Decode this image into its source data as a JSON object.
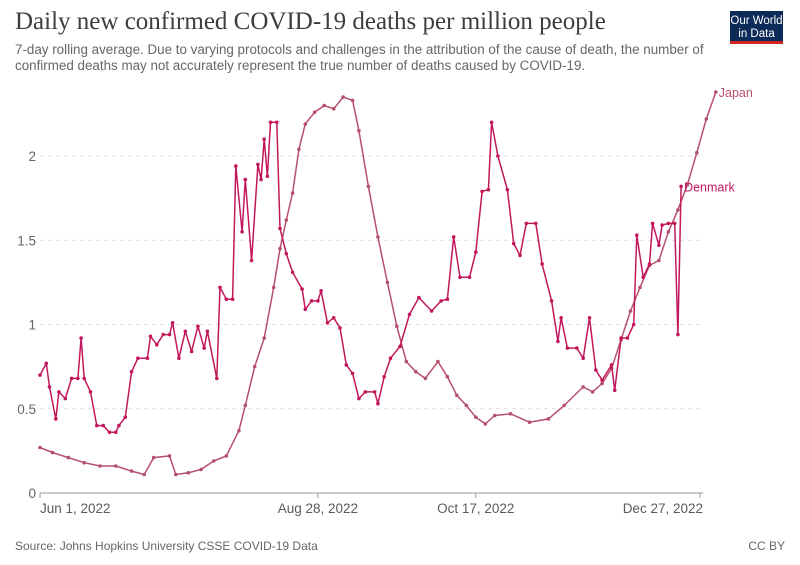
{
  "header": {
    "title": "Daily new confirmed COVID-19 deaths per million people",
    "subtitle": "7-day rolling average. Due to varying protocols and challenges in the attribution of the cause of death, the number of confirmed deaths may not accurately represent the true number of deaths caused by COVID-19.",
    "logo_line1": "Our World",
    "logo_line2": "in Data"
  },
  "footer": {
    "source": "Source: Johns Hopkins University CSSE COVID-19 Data",
    "license": "CC BY"
  },
  "colors": {
    "japan": "#b5506a",
    "denmark": "#c2185b",
    "grid": "#dddddd",
    "axis": "#999999"
  },
  "chart_data": {
    "type": "line",
    "title": "Daily new confirmed COVID-19 deaths per million people",
    "xlabel": "",
    "ylabel": "",
    "x_domain": [
      "2022-05-31",
      "2023-01-16"
    ],
    "ylim": [
      0,
      2.38
    ],
    "y_ticks": [
      0,
      0.5,
      1,
      1.5,
      2
    ],
    "y_tick_labels": [
      "0",
      "0.5",
      "1",
      "1.5",
      "2"
    ],
    "x_ticks": [
      "2022-06-01",
      "2022-08-28",
      "2022-10-17",
      "2022-12-27"
    ],
    "x_tick_labels": [
      "Jun 1, 2022",
      "Aug 28, 2022",
      "Oct 17, 2022",
      "Dec 27, 2022"
    ],
    "grid": "horizontal dashed",
    "legend": "inline labels at line ends",
    "series": [
      {
        "name": "Japan",
        "color": "#b5506a",
        "points": [
          [
            "2022-06-01",
            0.27
          ],
          [
            "2022-06-05",
            0.24
          ],
          [
            "2022-06-10",
            0.21
          ],
          [
            "2022-06-15",
            0.18
          ],
          [
            "2022-06-20",
            0.16
          ],
          [
            "2022-06-25",
            0.16
          ],
          [
            "2022-06-30",
            0.13
          ],
          [
            "2022-07-04",
            0.11
          ],
          [
            "2022-07-07",
            0.21
          ],
          [
            "2022-07-12",
            0.22
          ],
          [
            "2022-07-14",
            0.11
          ],
          [
            "2022-07-18",
            0.12
          ],
          [
            "2022-07-22",
            0.14
          ],
          [
            "2022-07-26",
            0.19
          ],
          [
            "2022-07-30",
            0.22
          ],
          [
            "2022-08-03",
            0.37
          ],
          [
            "2022-08-05",
            0.52
          ],
          [
            "2022-08-08",
            0.75
          ],
          [
            "2022-08-11",
            0.92
          ],
          [
            "2022-08-14",
            1.22
          ],
          [
            "2022-08-16",
            1.45
          ],
          [
            "2022-08-18",
            1.62
          ],
          [
            "2022-08-20",
            1.78
          ],
          [
            "2022-08-22",
            2.04
          ],
          [
            "2022-08-24",
            2.19
          ],
          [
            "2022-08-27",
            2.26
          ],
          [
            "2022-08-30",
            2.3
          ],
          [
            "2022-09-02",
            2.28
          ],
          [
            "2022-09-05",
            2.35
          ],
          [
            "2022-09-08",
            2.33
          ],
          [
            "2022-09-10",
            2.15
          ],
          [
            "2022-09-13",
            1.82
          ],
          [
            "2022-09-16",
            1.52
          ],
          [
            "2022-09-19",
            1.25
          ],
          [
            "2022-09-22",
            0.99
          ],
          [
            "2022-09-25",
            0.78
          ],
          [
            "2022-09-28",
            0.72
          ],
          [
            "2022-10-01",
            0.68
          ],
          [
            "2022-10-05",
            0.78
          ],
          [
            "2022-10-08",
            0.69
          ],
          [
            "2022-10-11",
            0.58
          ],
          [
            "2022-10-14",
            0.52
          ],
          [
            "2022-10-17",
            0.45
          ],
          [
            "2022-10-20",
            0.41
          ],
          [
            "2022-10-23",
            0.46
          ],
          [
            "2022-10-28",
            0.47
          ],
          [
            "2022-11-03",
            0.42
          ],
          [
            "2022-11-09",
            0.44
          ],
          [
            "2022-11-14",
            0.52
          ],
          [
            "2022-11-20",
            0.63
          ],
          [
            "2022-11-23",
            0.6
          ],
          [
            "2022-11-26",
            0.65
          ],
          [
            "2022-11-29",
            0.74
          ],
          [
            "2022-12-02",
            0.91
          ],
          [
            "2022-12-05",
            1.08
          ],
          [
            "2022-12-08",
            1.22
          ],
          [
            "2022-12-11",
            1.35
          ],
          [
            "2022-12-14",
            1.38
          ],
          [
            "2022-12-17",
            1.55
          ],
          [
            "2022-12-20",
            1.68
          ],
          [
            "2022-12-23",
            1.83
          ],
          [
            "2022-12-26",
            2.02
          ],
          [
            "2022-12-29",
            2.22
          ],
          [
            "2023-01-01",
            2.38
          ]
        ]
      },
      {
        "name": "Denmark",
        "color": "#c2185b",
        "points": [
          [
            "2022-06-01",
            0.7
          ],
          [
            "2022-06-03",
            0.77
          ],
          [
            "2022-06-04",
            0.63
          ],
          [
            "2022-06-06",
            0.44
          ],
          [
            "2022-06-07",
            0.6
          ],
          [
            "2022-06-09",
            0.56
          ],
          [
            "2022-06-11",
            0.68
          ],
          [
            "2022-06-13",
            0.68
          ],
          [
            "2022-06-14",
            0.92
          ],
          [
            "2022-06-15",
            0.68
          ],
          [
            "2022-06-17",
            0.6
          ],
          [
            "2022-06-19",
            0.4
          ],
          [
            "2022-06-21",
            0.4
          ],
          [
            "2022-06-23",
            0.36
          ],
          [
            "2022-06-25",
            0.36
          ],
          [
            "2022-06-26",
            0.4
          ],
          [
            "2022-06-28",
            0.45
          ],
          [
            "2022-06-30",
            0.72
          ],
          [
            "2022-07-02",
            0.8
          ],
          [
            "2022-07-05",
            0.8
          ],
          [
            "2022-07-06",
            0.93
          ],
          [
            "2022-07-08",
            0.88
          ],
          [
            "2022-07-10",
            0.94
          ],
          [
            "2022-07-12",
            0.94
          ],
          [
            "2022-07-13",
            1.01
          ],
          [
            "2022-07-15",
            0.8
          ],
          [
            "2022-07-17",
            0.96
          ],
          [
            "2022-07-19",
            0.84
          ],
          [
            "2022-07-21",
            0.99
          ],
          [
            "2022-07-23",
            0.86
          ],
          [
            "2022-07-24",
            0.96
          ],
          [
            "2022-07-27",
            0.68
          ],
          [
            "2022-07-28",
            1.22
          ],
          [
            "2022-07-30",
            1.15
          ],
          [
            "2022-08-01",
            1.15
          ],
          [
            "2022-08-02",
            1.94
          ],
          [
            "2022-08-04",
            1.55
          ],
          [
            "2022-08-05",
            1.86
          ],
          [
            "2022-08-07",
            1.38
          ],
          [
            "2022-08-09",
            1.95
          ],
          [
            "2022-08-10",
            1.86
          ],
          [
            "2022-08-11",
            2.1
          ],
          [
            "2022-08-12",
            1.88
          ],
          [
            "2022-08-13",
            2.2
          ],
          [
            "2022-08-15",
            2.2
          ],
          [
            "2022-08-16",
            1.57
          ],
          [
            "2022-08-18",
            1.42
          ],
          [
            "2022-08-20",
            1.31
          ],
          [
            "2022-08-23",
            1.21
          ],
          [
            "2022-08-24",
            1.09
          ],
          [
            "2022-08-26",
            1.14
          ],
          [
            "2022-08-28",
            1.14
          ],
          [
            "2022-08-29",
            1.2
          ],
          [
            "2022-08-31",
            1.01
          ],
          [
            "2022-09-02",
            1.04
          ],
          [
            "2022-09-04",
            0.98
          ],
          [
            "2022-09-06",
            0.76
          ],
          [
            "2022-09-08",
            0.71
          ],
          [
            "2022-09-10",
            0.56
          ],
          [
            "2022-09-12",
            0.6
          ],
          [
            "2022-09-15",
            0.6
          ],
          [
            "2022-09-16",
            0.53
          ],
          [
            "2022-09-18",
            0.69
          ],
          [
            "2022-09-20",
            0.8
          ],
          [
            "2022-09-23",
            0.87
          ],
          [
            "2022-09-26",
            1.06
          ],
          [
            "2022-09-29",
            1.16
          ],
          [
            "2022-10-03",
            1.08
          ],
          [
            "2022-10-06",
            1.14
          ],
          [
            "2022-10-08",
            1.15
          ],
          [
            "2022-10-10",
            1.52
          ],
          [
            "2022-10-12",
            1.28
          ],
          [
            "2022-10-15",
            1.28
          ],
          [
            "2022-10-17",
            1.43
          ],
          [
            "2022-10-19",
            1.79
          ],
          [
            "2022-10-21",
            1.8
          ],
          [
            "2022-10-22",
            2.2
          ],
          [
            "2022-10-24",
            2.0
          ],
          [
            "2022-10-27",
            1.8
          ],
          [
            "2022-10-29",
            1.48
          ],
          [
            "2022-10-31",
            1.41
          ],
          [
            "2022-11-02",
            1.6
          ],
          [
            "2022-11-05",
            1.6
          ],
          [
            "2022-11-07",
            1.36
          ],
          [
            "2022-11-10",
            1.14
          ],
          [
            "2022-11-12",
            0.9
          ],
          [
            "2022-11-13",
            1.04
          ],
          [
            "2022-11-15",
            0.86
          ],
          [
            "2022-11-18",
            0.86
          ],
          [
            "2022-11-20",
            0.8
          ],
          [
            "2022-11-22",
            1.04
          ],
          [
            "2022-11-24",
            0.73
          ],
          [
            "2022-11-26",
            0.67
          ],
          [
            "2022-11-29",
            0.76
          ],
          [
            "2022-11-30",
            0.61
          ],
          [
            "2022-12-02",
            0.92
          ],
          [
            "2022-12-04",
            0.92
          ],
          [
            "2022-12-06",
            1.0
          ],
          [
            "2022-12-07",
            1.53
          ],
          [
            "2022-12-09",
            1.28
          ],
          [
            "2022-12-11",
            1.36
          ],
          [
            "2022-12-12",
            1.6
          ],
          [
            "2022-12-14",
            1.47
          ],
          [
            "2022-12-15",
            1.59
          ],
          [
            "2022-12-17",
            1.6
          ],
          [
            "2022-12-19",
            1.6
          ],
          [
            "2022-12-20",
            0.94
          ],
          [
            "2022-12-21",
            1.82
          ]
        ]
      }
    ]
  }
}
